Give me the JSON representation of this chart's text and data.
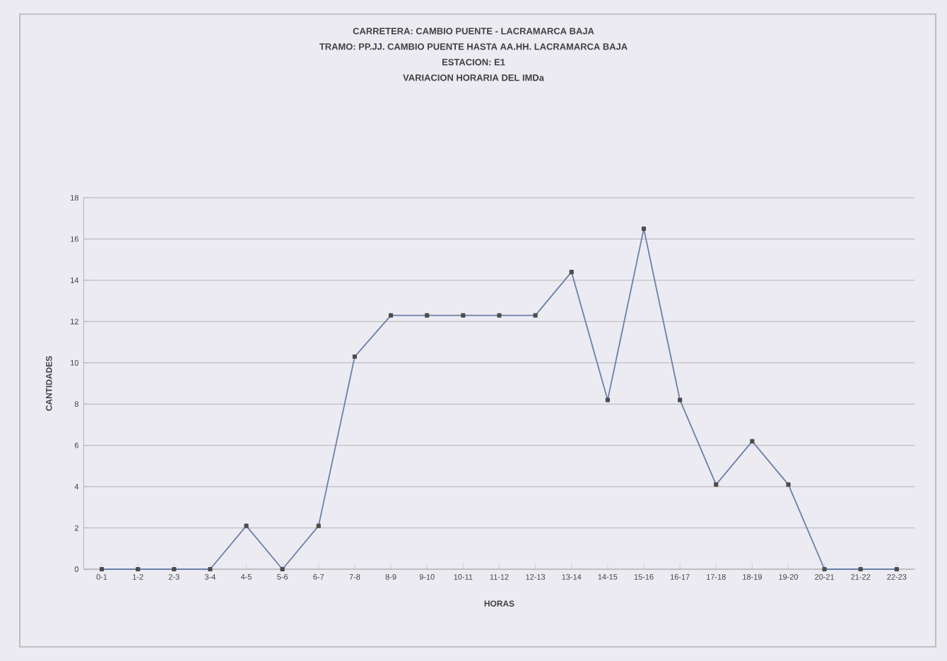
{
  "chart_data": {
    "type": "line",
    "title": "CARRETERA: CAMBIO PUENTE - LACRAMARCA BAJA",
    "subtitle": "TRAMO: PP.JJ. CAMBIO PUENTE HASTA AA.HH. LACRAMARCA BAJA",
    "annotations": [
      "ESTACION: E1",
      "VARIACION HORARIA DEL IMDa"
    ],
    "xlabel": "HORAS",
    "ylabel": "CANTIDADES",
    "categories": [
      "0-1",
      "1-2",
      "2-3",
      "3-4",
      "4-5",
      "5-6",
      "6-7",
      "7-8",
      "8-9",
      "9-10",
      "10-11",
      "11-12",
      "12-13",
      "13-14",
      "14-15",
      "15-16",
      "16-17",
      "17-18",
      "18-19",
      "19-20",
      "20-21",
      "21-22",
      "22-23"
    ],
    "series": [
      {
        "color": "#6a7fa8",
        "values": [
          0,
          0,
          0,
          0,
          2.1,
          0,
          2.1,
          10.3,
          12.3,
          12.3,
          12.3,
          12.3,
          12.3,
          14.4,
          8.2,
          16.5,
          8.2,
          4.1,
          6.2,
          4.1,
          0,
          0,
          0
        ]
      }
    ],
    "ylim": [
      0,
      18
    ],
    "yticks": [
      0,
      2,
      4,
      6,
      8,
      10,
      12,
      14,
      16,
      18
    ],
    "grid": "y",
    "marker": "square",
    "line_style": "solid"
  }
}
